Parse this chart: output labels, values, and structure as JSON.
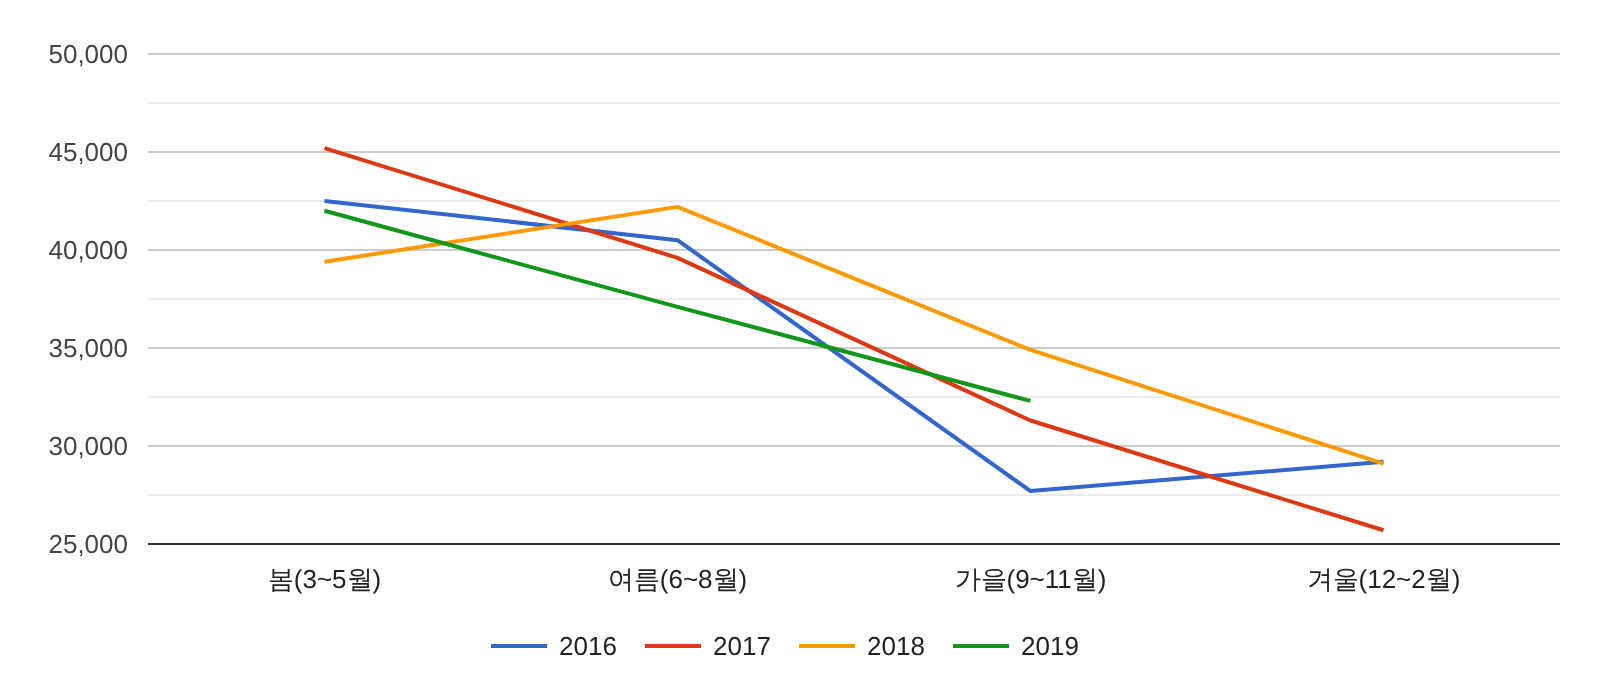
{
  "chart_data": {
    "type": "line",
    "categories": [
      "봄(3~5월)",
      "여름(6~8월)",
      "가을(9~11월)",
      "겨울(12~2월)"
    ],
    "series": [
      {
        "name": "2016",
        "color": "#3366cc",
        "values": [
          42500,
          40500,
          27700,
          29200
        ]
      },
      {
        "name": "2017",
        "color": "#dc3912",
        "values": [
          45200,
          39600,
          31300,
          25700
        ]
      },
      {
        "name": "2018",
        "color": "#ff9900",
        "values": [
          39400,
          42200,
          34900,
          29100
        ]
      },
      {
        "name": "2019",
        "color": "#109618",
        "values": [
          42000,
          37100,
          32300,
          null
        ]
      }
    ],
    "ylim": [
      25000,
      50000
    ],
    "yticks": [
      {
        "value": 25000,
        "label": "25,000"
      },
      {
        "value": 27500,
        "label": null
      },
      {
        "value": 30000,
        "label": "30,000"
      },
      {
        "value": 32500,
        "label": null
      },
      {
        "value": 35000,
        "label": "35,000"
      },
      {
        "value": 37500,
        "label": null
      },
      {
        "value": 40000,
        "label": "40,000"
      },
      {
        "value": 42500,
        "label": null
      },
      {
        "value": 45000,
        "label": "45,000"
      },
      {
        "value": 47500,
        "label": null
      },
      {
        "value": 50000,
        "label": "50,000"
      }
    ],
    "grid": true,
    "legend": "bottom",
    "line_style": "solid"
  }
}
